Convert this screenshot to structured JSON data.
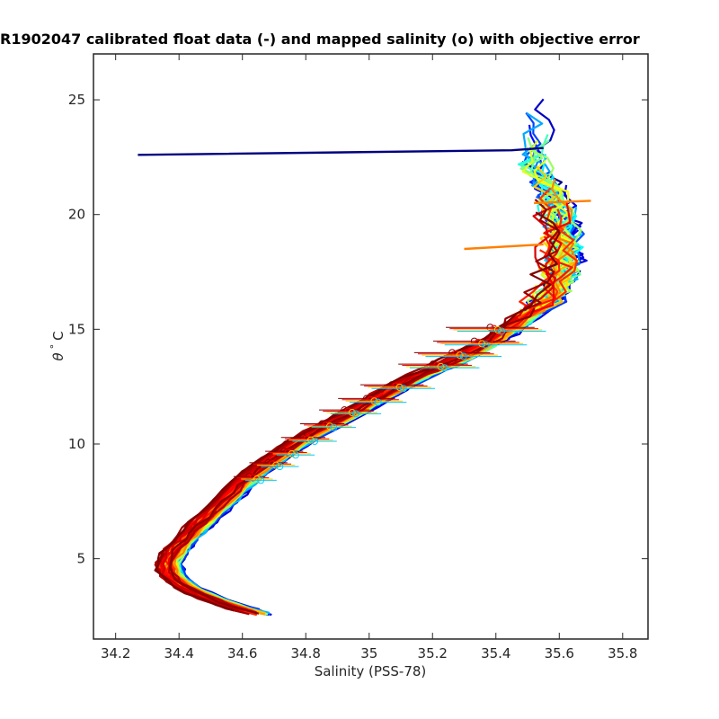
{
  "chart_data": {
    "type": "line",
    "title": "R1902047 calibrated float data (-) and mapped salinity (o) with objective error",
    "xlabel": "Salinity (PSS-78)",
    "ylabel_symbol": "θ",
    "ylabel_degree": "°",
    "ylabel_unit": "C",
    "xlim": [
      34.13,
      35.88
    ],
    "ylim": [
      1.5,
      27.0
    ],
    "xticks": [
      34.2,
      34.4,
      34.6,
      34.8,
      35.0,
      35.2,
      35.4,
      35.6,
      35.8
    ],
    "xtick_labels": [
      "34.2",
      "34.4",
      "34.6",
      "34.8",
      "35",
      "35.2",
      "35.4",
      "35.6",
      "35.8"
    ],
    "yticks": [
      5,
      10,
      15,
      20,
      25
    ],
    "ytick_labels": [
      "5",
      "10",
      "15",
      "20",
      "25"
    ],
    "grid": false,
    "legend": false,
    "colormap": [
      "#00007f",
      "#0000ff",
      "#007fff",
      "#00ffff",
      "#7fff7f",
      "#ffff00",
      "#ff7f00",
      "#ff0000",
      "#7f0000"
    ],
    "mean_profile": [
      [
        34.68,
        2.5
      ],
      [
        34.58,
        2.9
      ],
      [
        34.5,
        3.3
      ],
      [
        34.42,
        3.8
      ],
      [
        34.38,
        4.3
      ],
      [
        34.37,
        4.8
      ],
      [
        34.4,
        5.5
      ],
      [
        34.45,
        6.2
      ],
      [
        34.51,
        7.0
      ],
      [
        34.57,
        7.8
      ],
      [
        34.62,
        8.5
      ],
      [
        34.67,
        9.0
      ],
      [
        34.74,
        9.7
      ],
      [
        34.82,
        10.4
      ],
      [
        34.92,
        11.1
      ],
      [
        35.02,
        11.9
      ],
      [
        35.13,
        12.8
      ],
      [
        35.24,
        13.4
      ],
      [
        35.32,
        14.0
      ],
      [
        35.4,
        14.6
      ],
      [
        35.46,
        15.2
      ],
      [
        35.52,
        15.8
      ],
      [
        35.57,
        16.6
      ],
      [
        35.6,
        17.5
      ],
      [
        35.61,
        18.5
      ],
      [
        35.6,
        19.5
      ],
      [
        35.58,
        20.5
      ],
      [
        35.55,
        21.5
      ],
      [
        35.52,
        22.3
      ]
    ],
    "mapped_salinity": [
      {
        "theta": 8.5,
        "salinity": 34.64,
        "error": 0.05
      },
      {
        "theta": 9.1,
        "salinity": 34.7,
        "error": 0.06
      },
      {
        "theta": 9.6,
        "salinity": 34.75,
        "error": 0.06
      },
      {
        "theta": 10.2,
        "salinity": 34.81,
        "error": 0.07
      },
      {
        "theta": 10.8,
        "salinity": 34.87,
        "error": 0.07
      },
      {
        "theta": 11.4,
        "salinity": 34.94,
        "error": 0.08
      },
      {
        "theta": 11.9,
        "salinity": 35.01,
        "error": 0.09
      },
      {
        "theta": 12.5,
        "salinity": 35.09,
        "error": 0.1
      },
      {
        "theta": 13.4,
        "salinity": 35.22,
        "error": 0.11
      },
      {
        "theta": 13.9,
        "salinity": 35.28,
        "error": 0.12
      },
      {
        "theta": 14.4,
        "salinity": 35.35,
        "error": 0.13
      },
      {
        "theta": 15.0,
        "salinity": 35.4,
        "error": 0.14
      }
    ],
    "outlier_segments": [
      {
        "x": [
          34.27,
          35.45,
          35.55
        ],
        "y": [
          22.6,
          22.8,
          22.9
        ],
        "color": "#00007f"
      },
      {
        "x": [
          35.3,
          35.55
        ],
        "y": [
          18.5,
          18.7
        ],
        "color": "#ff7f00"
      },
      {
        "x": [
          35.52,
          35.7
        ],
        "y": [
          20.5,
          20.6
        ],
        "color": "#ff7f00"
      }
    ]
  }
}
